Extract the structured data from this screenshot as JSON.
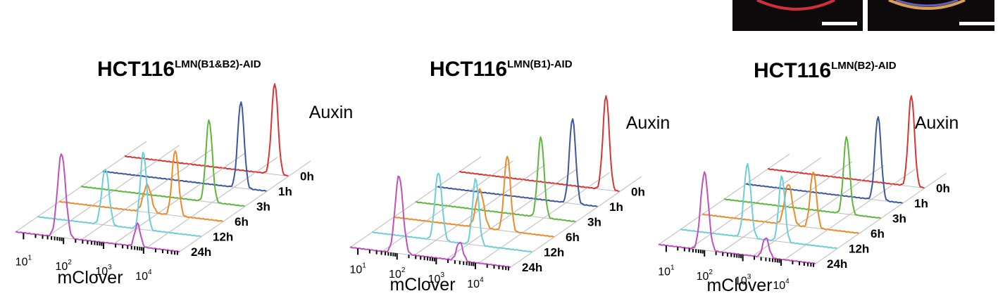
{
  "micrograph_colors": {
    "frame": "#0e0a0c",
    "nucleus_a": "#d0303a",
    "nucleus_b": "#d8a050",
    "scale_bar": "#ffffff"
  },
  "chart_data": [
    {
      "type": "ridgeline-histogram",
      "title": "HCT116",
      "title_superscript": "LMN(B1&B2)-AID",
      "annotation": "Auxin",
      "xlabel": "mClover",
      "x_scale": "log",
      "x_ticks": [
        {
          "base": "10",
          "exp": "1"
        },
        {
          "base": "10",
          "exp": "2"
        },
        {
          "base": "10",
          "exp": "3"
        },
        {
          "base": "10",
          "exp": "4"
        }
      ],
      "series": [
        {
          "name": "0h",
          "color": "#d83535",
          "peaks": [
            {
              "center": 4.55,
              "height": 1.0,
              "width": 0.08
            }
          ]
        },
        {
          "name": "1h",
          "color": "#3a57a0",
          "peaks": [
            {
              "center": 4.25,
              "height": 0.95,
              "width": 0.08
            }
          ]
        },
        {
          "name": "3h",
          "color": "#5cb83a",
          "peaks": [
            {
              "center": 4.0,
              "height": 0.9,
              "width": 0.08
            }
          ]
        },
        {
          "name": "6h",
          "color": "#ee8a2a",
          "peaks": [
            {
              "center": 3.7,
              "height": 0.72,
              "width": 0.08
            },
            {
              "center": 3.0,
              "height": 0.3,
              "width": 0.1
            }
          ]
        },
        {
          "name": "12h",
          "color": "#6ccfd8",
          "peaks": [
            {
              "center": 3.45,
              "height": 0.85,
              "width": 0.08
            },
            {
              "center": 2.5,
              "height": 0.62,
              "width": 0.09
            }
          ]
        },
        {
          "name": "24h",
          "color": "#c050c0",
          "peaks": [
            {
              "center": 1.95,
              "height": 0.92,
              "width": 0.1
            },
            {
              "center": 3.85,
              "height": 0.25,
              "width": 0.07
            }
          ]
        }
      ]
    },
    {
      "type": "ridgeline-histogram",
      "title": "HCT116",
      "title_superscript": "LMN(B1)-AID",
      "annotation": "Auxin",
      "xlabel": "mClover",
      "x_scale": "log",
      "x_ticks": [
        {
          "base": "10",
          "exp": "1"
        },
        {
          "base": "10",
          "exp": "2"
        },
        {
          "base": "10",
          "exp": "3"
        },
        {
          "base": "10",
          "exp": "4"
        }
      ],
      "series": [
        {
          "name": "0h",
          "color": "#d83535",
          "peaks": [
            {
              "center": 4.55,
              "height": 1.0,
              "width": 0.08
            }
          ]
        },
        {
          "name": "1h",
          "color": "#3a57a0",
          "peaks": [
            {
              "center": 4.25,
              "height": 0.9,
              "width": 0.08
            }
          ]
        },
        {
          "name": "3h",
          "color": "#5cb83a",
          "peaks": [
            {
              "center": 4.0,
              "height": 0.85,
              "width": 0.08
            }
          ]
        },
        {
          "name": "6h",
          "color": "#ee8a2a",
          "peaks": [
            {
              "center": 3.7,
              "height": 0.8,
              "width": 0.08
            },
            {
              "center": 3.0,
              "height": 0.4,
              "width": 0.1
            }
          ]
        },
        {
          "name": "12h",
          "color": "#6ccfd8",
          "peaks": [
            {
              "center": 3.45,
              "height": 0.7,
              "width": 0.08
            },
            {
              "center": 2.5,
              "height": 0.72,
              "width": 0.09
            }
          ]
        },
        {
          "name": "24h",
          "color": "#c050c0",
          "peaks": [
            {
              "center": 2.05,
              "height": 0.82,
              "width": 0.1
            },
            {
              "center": 3.6,
              "height": 0.2,
              "width": 0.08
            }
          ]
        }
      ]
    },
    {
      "type": "ridgeline-histogram",
      "title": "HCT116",
      "title_superscript": "LMN(B2)-AID",
      "annotation": "Auxin",
      "xlabel": "mClover",
      "x_scale": "log",
      "x_ticks": [
        {
          "base": "10",
          "exp": "1"
        },
        {
          "base": "10",
          "exp": "2"
        },
        {
          "base": "10",
          "exp": "3"
        },
        {
          "base": "10",
          "exp": "4"
        }
      ],
      "series": [
        {
          "name": "0h",
          "color": "#d83535",
          "peaks": [
            {
              "center": 4.55,
              "height": 1.0,
              "width": 0.08
            }
          ]
        },
        {
          "name": "1h",
          "color": "#3a57a0",
          "peaks": [
            {
              "center": 4.25,
              "height": 0.92,
              "width": 0.08
            }
          ]
        },
        {
          "name": "3h",
          "color": "#5cb83a",
          "peaks": [
            {
              "center": 4.0,
              "height": 0.85,
              "width": 0.08
            }
          ]
        },
        {
          "name": "6h",
          "color": "#ee8a2a",
          "peaks": [
            {
              "center": 3.7,
              "height": 0.62,
              "width": 0.08
            },
            {
              "center": 3.05,
              "height": 0.45,
              "width": 0.1
            }
          ]
        },
        {
          "name": "12h",
          "color": "#6ccfd8",
          "peaks": [
            {
              "center": 3.45,
              "height": 0.72,
              "width": 0.08
            },
            {
              "center": 2.55,
              "height": 0.8,
              "width": 0.09
            }
          ]
        },
        {
          "name": "24h",
          "color": "#c050c0",
          "peaks": [
            {
              "center": 2.0,
              "height": 0.85,
              "width": 0.1
            },
            {
              "center": 3.6,
              "height": 0.22,
              "width": 0.08
            }
          ]
        }
      ]
    }
  ]
}
